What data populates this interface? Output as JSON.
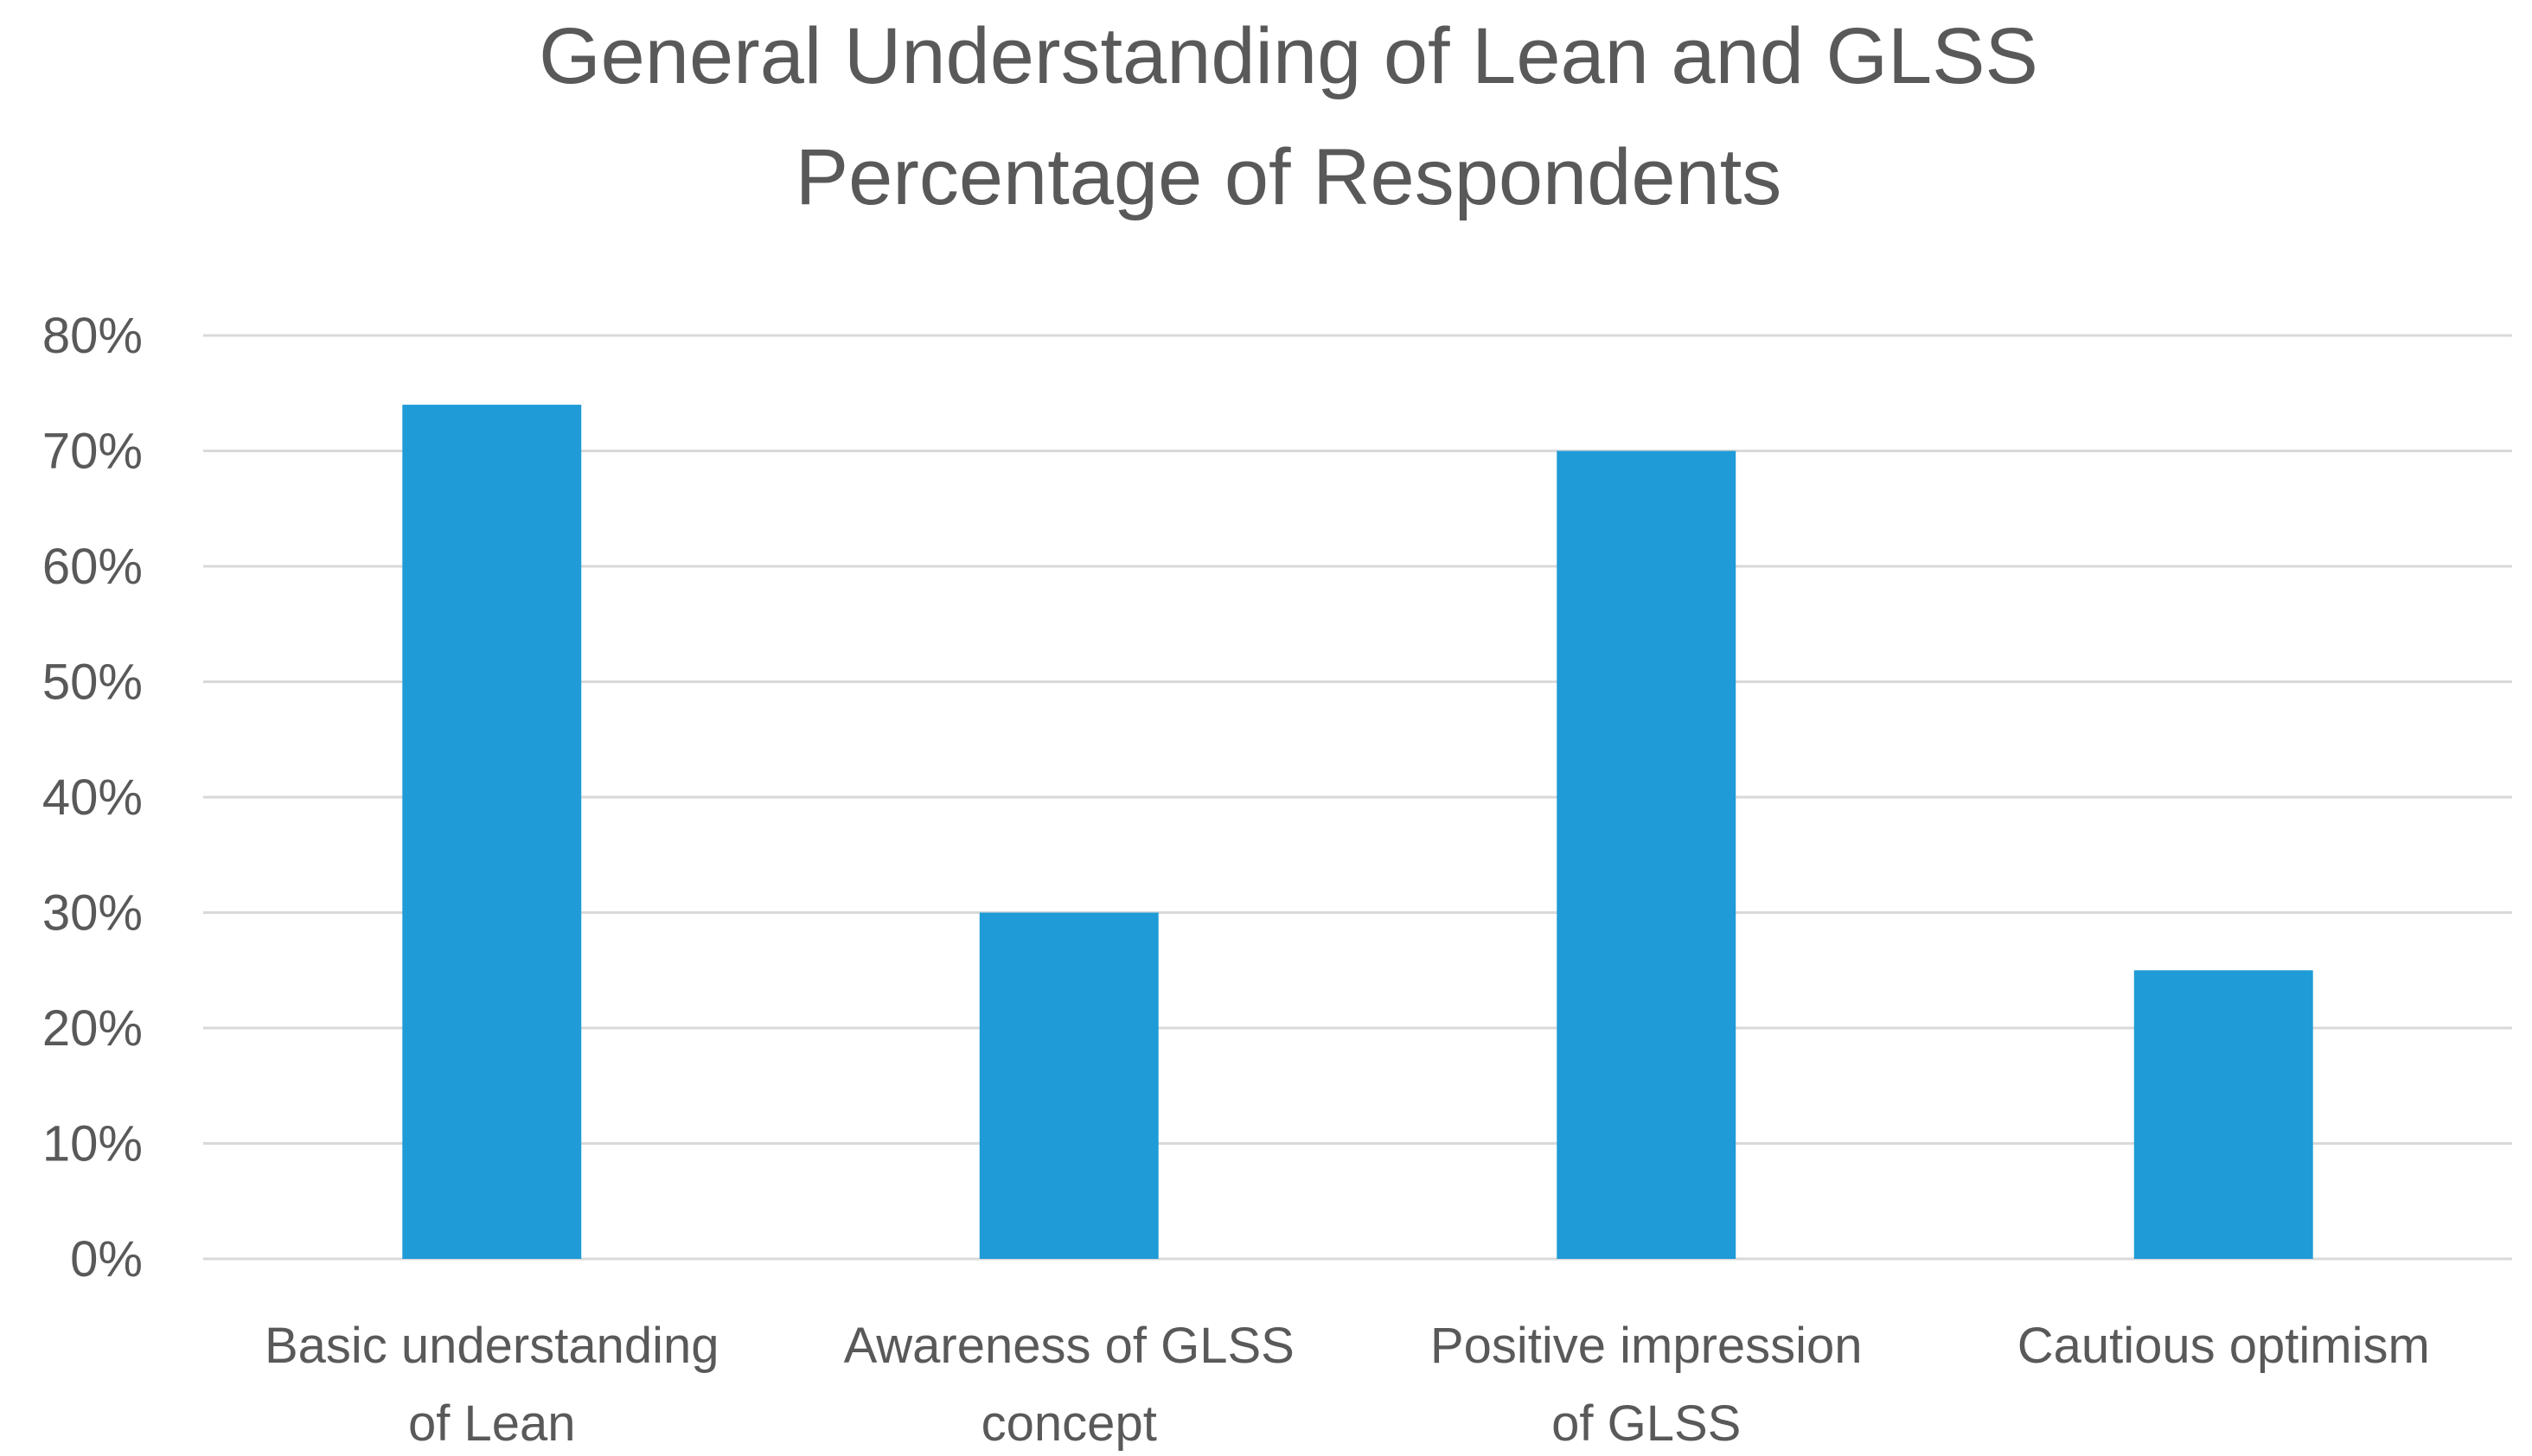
{
  "chart_data": {
    "type": "bar",
    "title_lines": [
      "General Understanding of Lean and GLSS",
      "Percentage of Respondents"
    ],
    "categories": [
      [
        "Basic understanding",
        "of Lean"
      ],
      [
        "Awareness of GLSS",
        "concept"
      ],
      [
        "Positive impression",
        "of GLSS"
      ],
      [
        "Cautious optimism"
      ]
    ],
    "values": [
      74,
      30,
      70,
      25
    ],
    "ylim": [
      0,
      80
    ],
    "yticks": [
      0,
      10,
      20,
      30,
      40,
      50,
      60,
      70,
      80
    ],
    "ytick_labels": [
      "0%",
      "10%",
      "20%",
      "30%",
      "40%",
      "50%",
      "60%",
      "70%",
      "80%"
    ],
    "xlabel": "",
    "ylabel": "",
    "grid": true,
    "bar_color": "#1f9bd7"
  }
}
